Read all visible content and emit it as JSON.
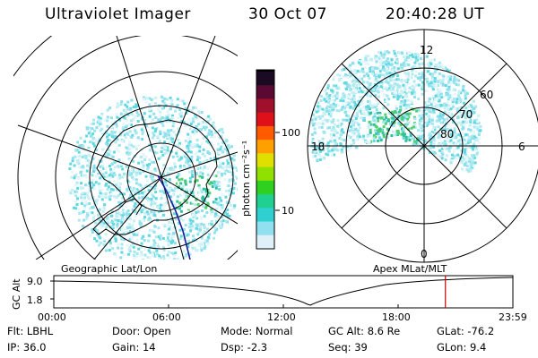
{
  "header": {
    "title": "Ultraviolet Imager",
    "date": "30 Oct 07",
    "time": "20:40:28 UT"
  },
  "colorbar": {
    "unit_label": "photon cm⁻²s⁻¹",
    "ticks": [
      "100",
      "10"
    ],
    "colors": [
      "#1a0a24",
      "#5a0a32",
      "#a0102a",
      "#e0101a",
      "#ff5a00",
      "#ffa000",
      "#e0e000",
      "#90e000",
      "#30d020",
      "#20d090",
      "#30d0d0",
      "#90e0f0",
      "#e0f0f8"
    ]
  },
  "geo_map": {
    "label": "Geographic Lat/Lon"
  },
  "polar_plot": {
    "label": "Apex MLat/MLT",
    "mlt_labels": {
      "top": "12",
      "left": "18",
      "right": "6",
      "bottom": "0"
    },
    "lat_labels": [
      "60",
      "70",
      "80"
    ]
  },
  "altitude_plot": {
    "ylabel": "GC Alt",
    "y_ticks": [
      "9.0",
      "1.8"
    ],
    "x_ticks": [
      "00:00",
      "06:00",
      "12:00",
      "18:00",
      "23:59"
    ],
    "current_time_fraction": 0.853,
    "marker_color": "#cc0000"
  },
  "info": {
    "flt": "Flt: LBHL",
    "ip": "IP: 36.0",
    "door": "Door: Open",
    "gain": "Gain: 14",
    "mode": "Mode: Normal",
    "dsp": "Dsp:   -2.3",
    "gc_alt": "GC Alt: 8.6 Re",
    "seq": "Seq: 39",
    "glat": "GLat: -76.2",
    "glon": "GLon:   9.4"
  }
}
